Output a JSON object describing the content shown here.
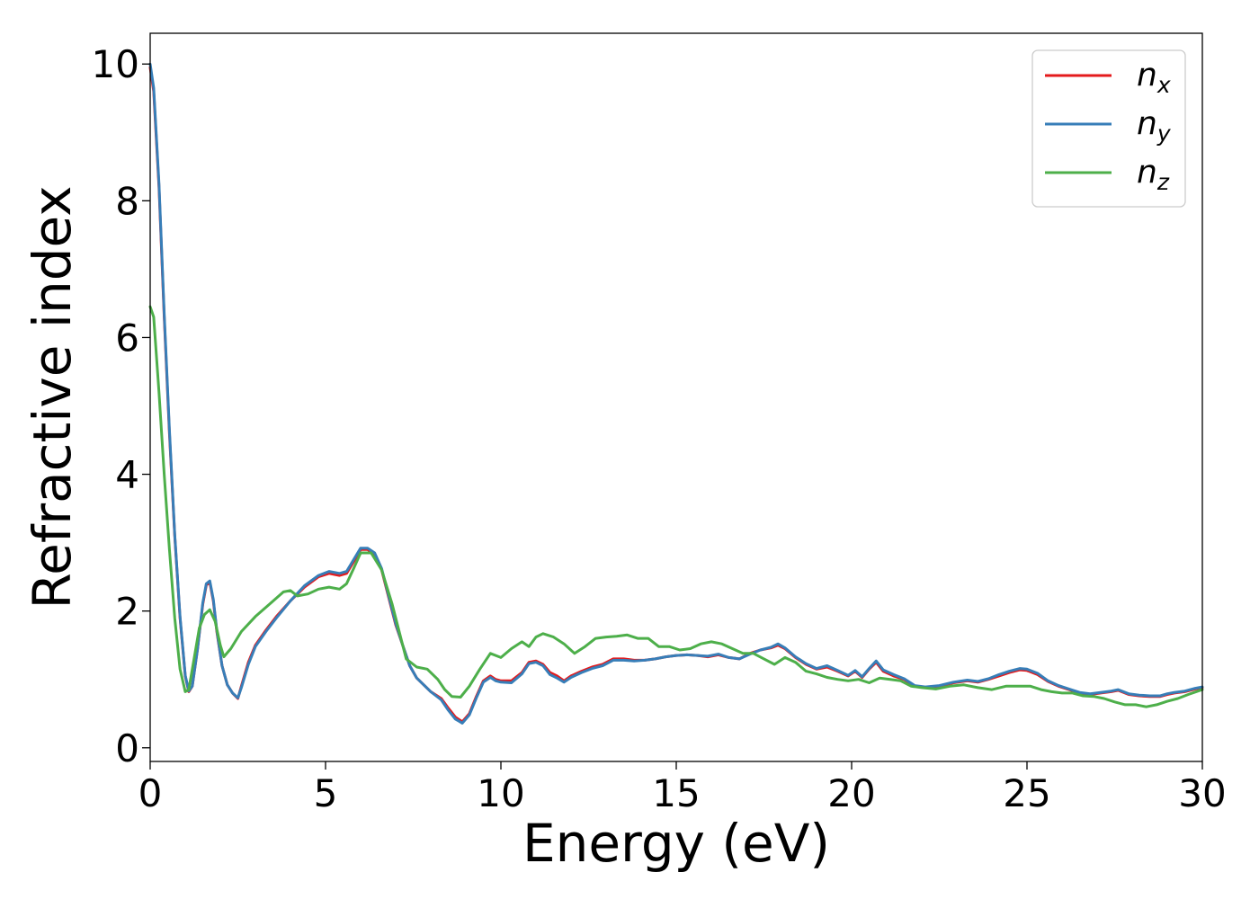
{
  "chart_data": {
    "type": "line",
    "title": "",
    "xlabel": "Energy (eV)",
    "ylabel": "Refractive index",
    "xlim": [
      0,
      30
    ],
    "ylim": [
      -0.2,
      10.45
    ],
    "xticks": [
      0,
      5,
      10,
      15,
      20,
      25,
      30
    ],
    "yticks": [
      0,
      2,
      4,
      6,
      8,
      10
    ],
    "grid": false,
    "legend": "top-right",
    "series": [
      {
        "name": "n",
        "subscript": "x",
        "color": "#e41a1c",
        "x": [
          0,
          0.1,
          0.25,
          0.4,
          0.55,
          0.7,
          0.85,
          1.0,
          1.1,
          1.2,
          1.35,
          1.5,
          1.6,
          1.7,
          1.8,
          1.9,
          2.05,
          2.2,
          2.35,
          2.5,
          2.6,
          2.8,
          3.0,
          3.3,
          3.6,
          4.0,
          4.4,
          4.8,
          5.1,
          5.4,
          5.6,
          5.8,
          6.0,
          6.2,
          6.4,
          6.6,
          6.8,
          7.0,
          7.2,
          7.4,
          7.6,
          7.8,
          8.0,
          8.3,
          8.5,
          8.7,
          8.9,
          9.1,
          9.3,
          9.5,
          9.7,
          9.85,
          10.0,
          10.3,
          10.6,
          10.8,
          11.0,
          11.2,
          11.4,
          11.6,
          11.8,
          12.0,
          12.3,
          12.6,
          12.9,
          13.2,
          13.5,
          13.8,
          14.1,
          14.4,
          14.7,
          15.0,
          15.3,
          15.6,
          15.9,
          16.2,
          16.5,
          16.8,
          17.1,
          17.4,
          17.7,
          17.9,
          18.1,
          18.4,
          18.7,
          19.0,
          19.3,
          19.6,
          19.9,
          20.1,
          20.3,
          20.5,
          20.7,
          20.9,
          21.2,
          21.5,
          21.8,
          22.1,
          22.5,
          22.9,
          23.3,
          23.6,
          23.9,
          24.2,
          24.5,
          24.8,
          25.0,
          25.3,
          25.6,
          25.9,
          26.2,
          26.5,
          26.8,
          27.1,
          27.4,
          27.6,
          27.9,
          28.2,
          28.5,
          28.8,
          29.0,
          29.2,
          29.5,
          29.8,
          30.0
        ],
        "y": [
          9.95,
          9.6,
          8.2,
          6.3,
          4.6,
          3.1,
          1.9,
          1.05,
          0.82,
          0.9,
          1.45,
          2.1,
          2.38,
          2.42,
          2.15,
          1.7,
          1.2,
          0.92,
          0.8,
          0.72,
          0.9,
          1.25,
          1.5,
          1.72,
          1.92,
          2.15,
          2.35,
          2.5,
          2.55,
          2.52,
          2.55,
          2.72,
          2.9,
          2.9,
          2.82,
          2.6,
          2.2,
          1.8,
          1.5,
          1.2,
          1.02,
          0.92,
          0.82,
          0.72,
          0.58,
          0.45,
          0.38,
          0.5,
          0.75,
          0.98,
          1.05,
          1.0,
          0.98,
          0.98,
          1.1,
          1.25,
          1.27,
          1.22,
          1.1,
          1.05,
          0.98,
          1.05,
          1.12,
          1.18,
          1.22,
          1.3,
          1.3,
          1.28,
          1.28,
          1.3,
          1.33,
          1.35,
          1.36,
          1.35,
          1.33,
          1.36,
          1.32,
          1.3,
          1.38,
          1.43,
          1.46,
          1.5,
          1.45,
          1.32,
          1.22,
          1.15,
          1.18,
          1.12,
          1.05,
          1.12,
          1.03,
          1.15,
          1.25,
          1.12,
          1.05,
          1.0,
          0.9,
          0.88,
          0.9,
          0.95,
          0.98,
          0.96,
          1.0,
          1.05,
          1.1,
          1.14,
          1.13,
          1.07,
          0.97,
          0.9,
          0.85,
          0.8,
          0.78,
          0.8,
          0.82,
          0.84,
          0.78,
          0.76,
          0.75,
          0.75,
          0.78,
          0.8,
          0.82,
          0.86,
          0.88
        ]
      },
      {
        "name": "n",
        "subscript": "y",
        "color": "#377eb8",
        "x": [
          0,
          0.1,
          0.25,
          0.4,
          0.55,
          0.7,
          0.85,
          1.0,
          1.1,
          1.2,
          1.35,
          1.5,
          1.6,
          1.7,
          1.8,
          1.9,
          2.05,
          2.2,
          2.35,
          2.5,
          2.6,
          2.8,
          3.0,
          3.3,
          3.6,
          4.0,
          4.4,
          4.8,
          5.1,
          5.4,
          5.6,
          5.8,
          6.0,
          6.2,
          6.4,
          6.6,
          6.8,
          7.0,
          7.2,
          7.4,
          7.6,
          7.8,
          8.0,
          8.3,
          8.5,
          8.7,
          8.9,
          9.1,
          9.3,
          9.5,
          9.7,
          9.85,
          10.0,
          10.3,
          10.6,
          10.8,
          11.0,
          11.2,
          11.4,
          11.6,
          11.8,
          12.0,
          12.3,
          12.6,
          12.9,
          13.2,
          13.5,
          13.8,
          14.1,
          14.4,
          14.7,
          15.0,
          15.3,
          15.6,
          15.9,
          16.2,
          16.5,
          16.8,
          17.1,
          17.4,
          17.7,
          17.9,
          18.1,
          18.4,
          18.7,
          19.0,
          19.3,
          19.6,
          19.9,
          20.1,
          20.3,
          20.5,
          20.7,
          20.9,
          21.2,
          21.5,
          21.8,
          22.1,
          22.5,
          22.9,
          23.3,
          23.6,
          23.9,
          24.2,
          24.5,
          24.8,
          25.0,
          25.3,
          25.6,
          25.9,
          26.2,
          26.5,
          26.8,
          27.1,
          27.4,
          27.6,
          27.9,
          28.2,
          28.5,
          28.8,
          29.0,
          29.2,
          29.5,
          29.8,
          30.0
        ],
        "y": [
          10.0,
          9.65,
          8.25,
          6.35,
          4.65,
          3.12,
          1.92,
          1.06,
          0.83,
          0.9,
          1.45,
          2.12,
          2.4,
          2.44,
          2.17,
          1.72,
          1.2,
          0.92,
          0.8,
          0.73,
          0.88,
          1.22,
          1.48,
          1.7,
          1.9,
          2.15,
          2.37,
          2.52,
          2.58,
          2.55,
          2.58,
          2.75,
          2.92,
          2.92,
          2.85,
          2.62,
          2.22,
          1.82,
          1.5,
          1.2,
          1.02,
          0.92,
          0.82,
          0.7,
          0.55,
          0.42,
          0.36,
          0.48,
          0.73,
          0.96,
          1.03,
          0.98,
          0.96,
          0.95,
          1.08,
          1.23,
          1.25,
          1.2,
          1.07,
          1.02,
          0.96,
          1.03,
          1.1,
          1.16,
          1.2,
          1.28,
          1.28,
          1.27,
          1.28,
          1.3,
          1.33,
          1.35,
          1.36,
          1.35,
          1.34,
          1.37,
          1.32,
          1.3,
          1.37,
          1.43,
          1.47,
          1.52,
          1.46,
          1.33,
          1.23,
          1.16,
          1.2,
          1.13,
          1.06,
          1.13,
          1.04,
          1.16,
          1.27,
          1.14,
          1.07,
          1.01,
          0.91,
          0.89,
          0.91,
          0.96,
          0.99,
          0.97,
          1.01,
          1.07,
          1.12,
          1.16,
          1.15,
          1.09,
          0.98,
          0.91,
          0.86,
          0.81,
          0.79,
          0.81,
          0.83,
          0.85,
          0.79,
          0.77,
          0.76,
          0.76,
          0.79,
          0.81,
          0.83,
          0.87,
          0.89
        ]
      },
      {
        "name": "n",
        "subscript": "z",
        "color": "#4daf4a",
        "x": [
          0,
          0.1,
          0.25,
          0.4,
          0.55,
          0.7,
          0.85,
          1.0,
          1.1,
          1.25,
          1.4,
          1.55,
          1.7,
          1.85,
          2.0,
          2.1,
          2.3,
          2.6,
          3.0,
          3.4,
          3.8,
          4.0,
          4.2,
          4.5,
          4.8,
          5.1,
          5.4,
          5.6,
          5.8,
          6.0,
          6.3,
          6.6,
          6.9,
          7.1,
          7.3,
          7.6,
          7.9,
          8.2,
          8.4,
          8.6,
          8.85,
          9.1,
          9.4,
          9.7,
          10.0,
          10.3,
          10.6,
          10.8,
          11.0,
          11.2,
          11.5,
          11.8,
          12.1,
          12.4,
          12.7,
          13.0,
          13.3,
          13.6,
          13.9,
          14.2,
          14.5,
          14.8,
          15.1,
          15.4,
          15.7,
          16.0,
          16.3,
          16.6,
          16.9,
          17.2,
          17.5,
          17.8,
          18.1,
          18.4,
          18.7,
          19.0,
          19.3,
          19.6,
          19.9,
          20.2,
          20.5,
          20.8,
          21.1,
          21.4,
          21.7,
          22.0,
          22.4,
          22.8,
          23.2,
          23.6,
          24.0,
          24.4,
          24.8,
          25.1,
          25.4,
          25.7,
          26.0,
          26.3,
          26.6,
          26.9,
          27.2,
          27.5,
          27.8,
          28.1,
          28.4,
          28.7,
          29.0,
          29.3,
          29.6,
          30.0
        ],
        "y": [
          6.45,
          6.3,
          5.2,
          4.0,
          2.9,
          1.9,
          1.15,
          0.82,
          0.85,
          1.3,
          1.75,
          1.95,
          2.02,
          1.85,
          1.5,
          1.33,
          1.45,
          1.7,
          1.92,
          2.1,
          2.28,
          2.3,
          2.22,
          2.25,
          2.32,
          2.35,
          2.32,
          2.4,
          2.62,
          2.85,
          2.85,
          2.6,
          2.1,
          1.7,
          1.3,
          1.18,
          1.15,
          1.0,
          0.85,
          0.75,
          0.74,
          0.9,
          1.15,
          1.38,
          1.32,
          1.45,
          1.55,
          1.48,
          1.62,
          1.67,
          1.62,
          1.52,
          1.38,
          1.48,
          1.6,
          1.62,
          1.63,
          1.65,
          1.6,
          1.6,
          1.48,
          1.48,
          1.43,
          1.45,
          1.52,
          1.55,
          1.52,
          1.45,
          1.38,
          1.38,
          1.3,
          1.22,
          1.32,
          1.25,
          1.12,
          1.08,
          1.03,
          1.0,
          0.98,
          1.0,
          0.95,
          1.02,
          1.0,
          0.98,
          0.9,
          0.88,
          0.86,
          0.9,
          0.92,
          0.88,
          0.85,
          0.9,
          0.9,
          0.9,
          0.85,
          0.82,
          0.8,
          0.8,
          0.76,
          0.75,
          0.72,
          0.67,
          0.63,
          0.63,
          0.6,
          0.63,
          0.68,
          0.72,
          0.78,
          0.85
        ]
      }
    ]
  }
}
